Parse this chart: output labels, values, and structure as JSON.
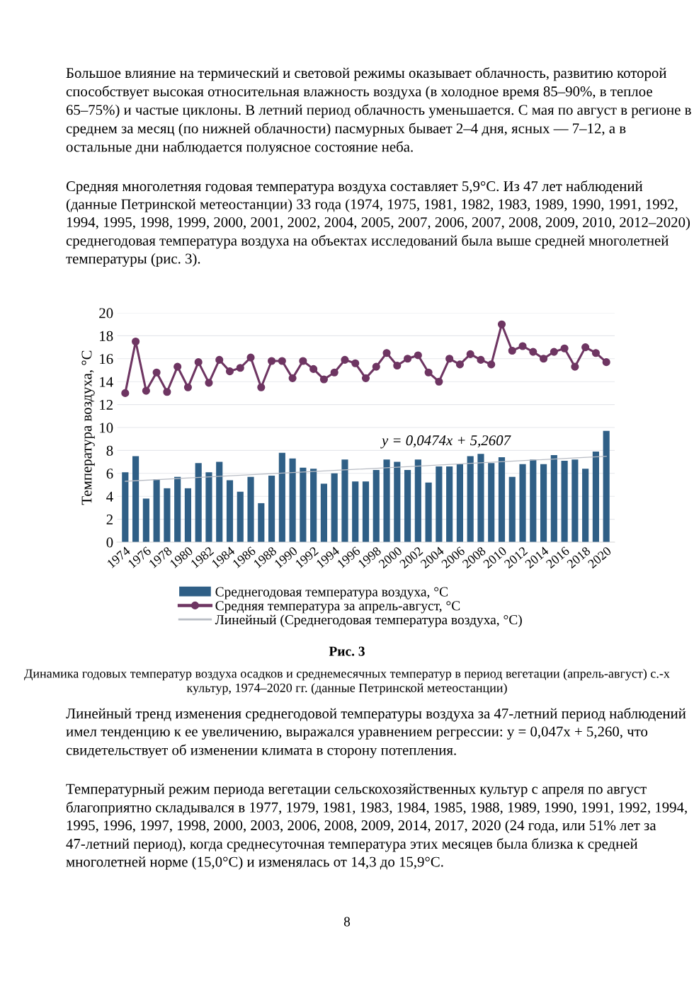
{
  "chart_data": {
    "type": "bar",
    "title": "Рис. 3",
    "subtitle": "Динамика годовых температур воздуха осадков и среднемесячных температур в период вегетации (апрель-август) с.-х культур, 1974–2020 гг. (данные Петринской метеостанции)",
    "ylabel": "Температура воздуха, °С",
    "x": [
      1974,
      1975,
      1976,
      1977,
      1978,
      1979,
      1980,
      1981,
      1982,
      1983,
      1984,
      1985,
      1986,
      1987,
      1988,
      1989,
      1990,
      1991,
      1992,
      1993,
      1994,
      1995,
      1996,
      1997,
      1998,
      1999,
      2000,
      2001,
      2002,
      2003,
      2004,
      2005,
      2006,
      2007,
      2008,
      2009,
      2010,
      2011,
      2012,
      2013,
      2014,
      2015,
      2016,
      2017,
      2018,
      2019,
      2020
    ],
    "xlim": [
      1973.2,
      2020.8
    ],
    "xticks": [
      1974,
      1976,
      1978,
      1980,
      1982,
      1984,
      1986,
      1988,
      1990,
      1992,
      1994,
      1996,
      1998,
      2000,
      2002,
      2004,
      2006,
      2008,
      2010,
      2012,
      2014,
      2016,
      2018,
      2020
    ],
    "ylim": [
      0,
      20
    ],
    "yticks": [
      0,
      2,
      4,
      6,
      8,
      10,
      12,
      14,
      16,
      18,
      20
    ],
    "grid": "y",
    "legend": "bottom",
    "series": [
      {
        "name": "Среднегодовая температура воздуха, °С",
        "color": "#2f5f86",
        "values": [
          6.1,
          7.5,
          3.8,
          5.5,
          4.7,
          5.7,
          4.7,
          6.9,
          6.1,
          7.0,
          5.4,
          4.4,
          5.7,
          3.4,
          5.8,
          7.8,
          7.3,
          6.5,
          6.4,
          5.1,
          6.0,
          7.2,
          5.3,
          5.3,
          6.3,
          7.2,
          7.0,
          6.3,
          7.2,
          5.2,
          6.6,
          6.6,
          6.8,
          7.5,
          7.7,
          6.9,
          7.4,
          5.7,
          6.8,
          7.2,
          6.8,
          7.6,
          7.1,
          7.2,
          6.4,
          7.9,
          9.7
        ]
      },
      {
        "name": "Средняя температура за апрель-август, °С",
        "type": "line",
        "color": "#6e3562",
        "marker": "circle",
        "values": [
          13.0,
          17.5,
          13.2,
          14.8,
          13.1,
          15.3,
          13.5,
          15.7,
          13.9,
          15.9,
          14.9,
          15.2,
          16.1,
          13.5,
          15.8,
          15.8,
          14.3,
          15.8,
          15.1,
          14.2,
          14.8,
          15.9,
          15.6,
          14.3,
          15.3,
          16.5,
          15.4,
          16.0,
          16.3,
          14.8,
          14.0,
          16.0,
          15.5,
          16.4,
          15.9,
          15.5,
          19.0,
          16.7,
          17.1,
          16.6,
          16.0,
          16.6,
          16.9,
          15.3,
          17.0,
          16.5,
          15.7
        ]
      },
      {
        "name": "Линейный (Среднегодовая температура воздуха, °С)",
        "type": "line",
        "color": "#b8bcc4",
        "x": [
          1974,
          2020
        ],
        "values": [
          5.31,
          7.49
        ]
      }
    ],
    "annotations": [
      "Большое влияние на термический и световой режимы оказывает облачность, развитию которой способствует высокая относительная влажность воздуха (в холодное время 85–90%, в теплое 65–75%) и частые циклоны. В летний период облачность уменьшается. С мая по август в регионе в среднем за месяц (по нижней облачности) пасмурных бывает 2–4 дня, ясных — 7–12, а в остальные дни наблюдается полуясное состояние неба.",
      "Средняя многолетняя годовая температура воздуха составляет 5,9°С. Из 47 лет наблюдений (данные Петринской метеостанции) 33 года (1974, 1975, 1981, 1982, 1983, 1989, 1990, 1991, 1992, 1994, 1995, 1998, 1999, 2000, 2001, 2002, 2004, 2005, 2007, 2006, 2007, 2008, 2009, 2010, 2012–2020) среднегодовая температура воздуха на объектах исследований была выше средней многолетней температуры (рис. 3).",
      "y = 0,0474x + 5,2607",
      "Линейный тренд изменения среднегодовой температуры воздуха за 47-летний период наблюдений имел тенденцию к ее увеличению, выражался уравнением регрессии: y = 0,047x + 5,260, что свидетельствует об изменении климата в сторону потепления.",
      "Температурный режим периода вегетации сельскохозяйственных культур с апреля по август благоприятно складывался в 1977, 1979, 1981, 1983, 1984, 1985, 1988, 1989, 1990, 1991, 1992, 1994, 1995, 1996, 1997, 1998, 2000, 2003, 2006, 2008, 2009, 2014, 2017, 2020 (24 года, или 51% лет за 47-летний период), когда среднесуточная температура этих месяцев была близка к средней многолетней норме (15,0°С) и изменялась от 14,3 до 15,9°С.",
      "8"
    ]
  }
}
